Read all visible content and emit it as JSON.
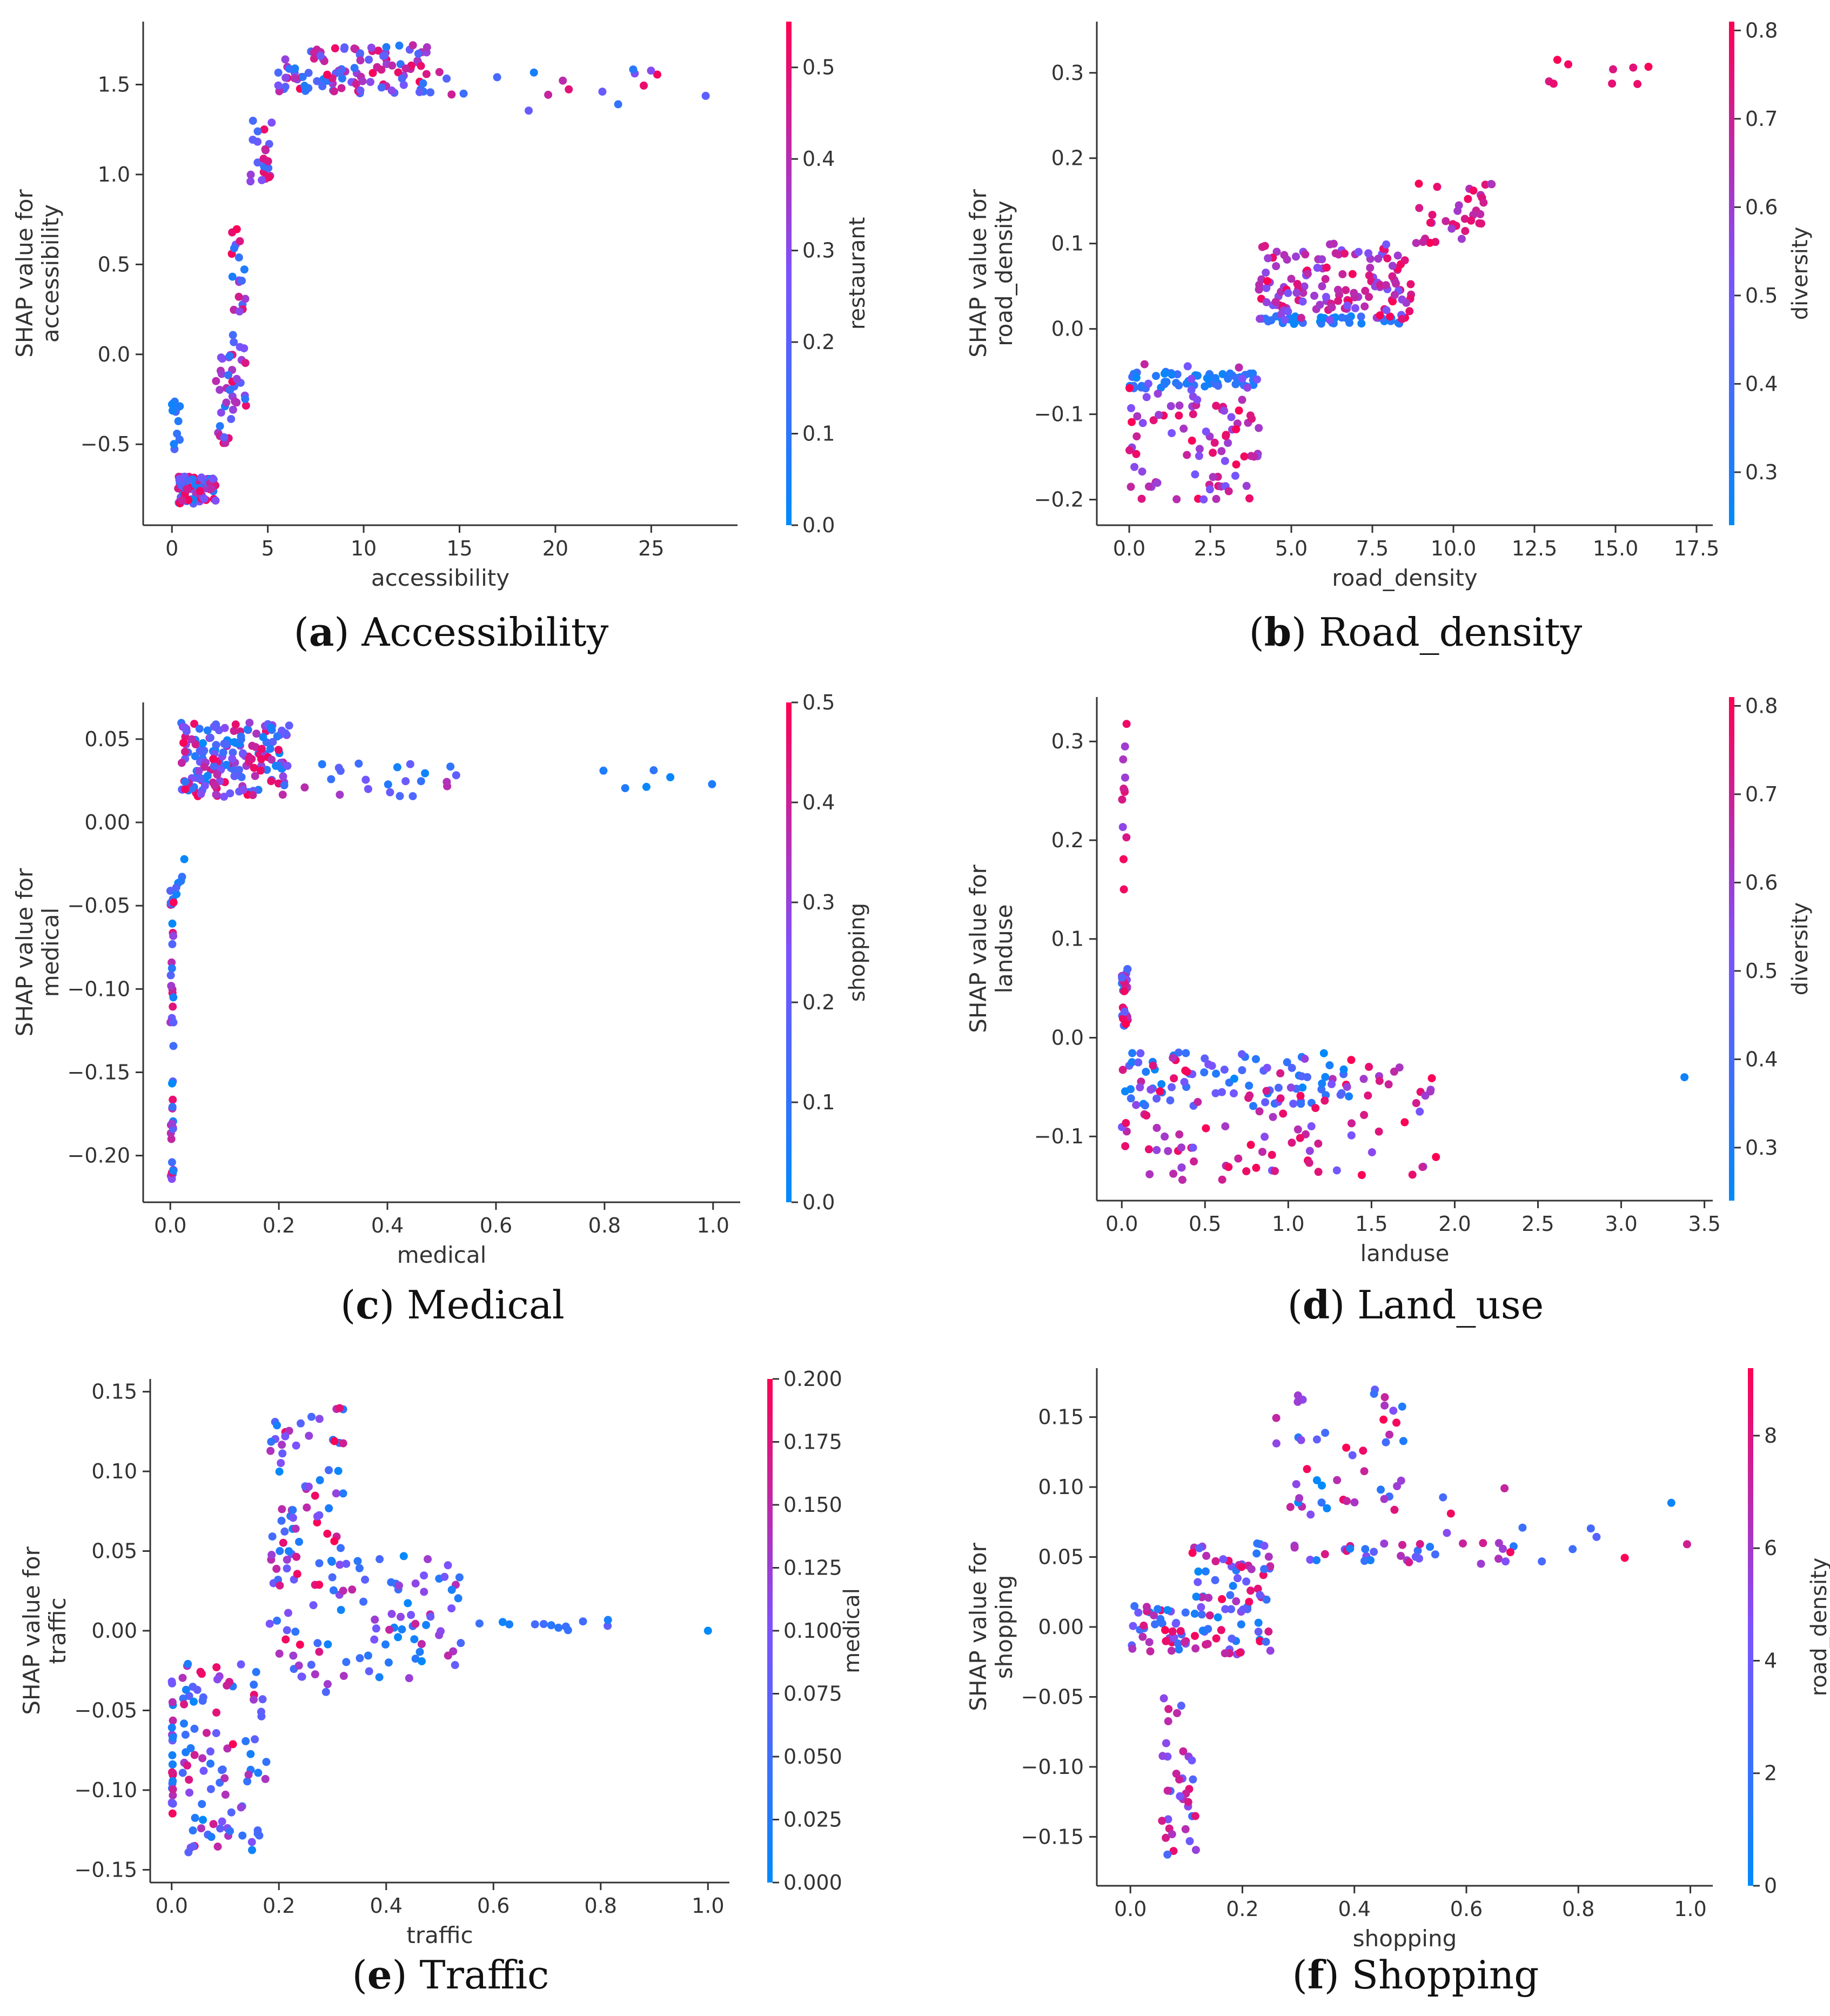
{
  "chart_data": [
    {
      "id": "a",
      "type": "scatter",
      "caption": {
        "letter": "a",
        "title": "Accessibility"
      },
      "xlabel": "accessibility",
      "ylabel": [
        "SHAP value for",
        "accessibility"
      ],
      "xlim": [
        -1.5,
        29.5
      ],
      "ylim": [
        -0.95,
        1.85
      ],
      "xticks": [
        0,
        5,
        10,
        15,
        20,
        25
      ],
      "xtick_labels": [
        "0",
        "5",
        "10",
        "15",
        "20",
        "25"
      ],
      "yticks": [
        -0.5,
        0.0,
        0.5,
        1.0,
        1.5
      ],
      "ytick_labels": [
        "−0.5",
        "0.0",
        "0.5",
        "1.0",
        "1.5"
      ],
      "colorbar": {
        "label": "restaurant",
        "min": 0.0,
        "max": 0.55,
        "ticks": [
          0.0,
          0.1,
          0.2,
          0.3,
          0.4,
          0.5
        ],
        "tick_labels": [
          "0.0",
          "0.1",
          "0.2",
          "0.3",
          "0.4",
          "0.5"
        ]
      },
      "segments": [
        {
          "x": [
            0.0,
            0.6
          ],
          "y": [
            -0.55,
            -0.2
          ],
          "c": [
            0.0,
            0.2
          ],
          "n": 14
        },
        {
          "x": [
            0.3,
            2.3
          ],
          "y": [
            -0.83,
            -0.68
          ],
          "c": [
            0.0,
            0.55
          ],
          "n": 80
        },
        {
          "x": [
            2.2,
            3.2
          ],
          "y": [
            -0.5,
            0.0
          ],
          "c": [
            0.05,
            0.55
          ],
          "n": 24
        },
        {
          "x": [
            3.0,
            3.9
          ],
          "y": [
            -0.3,
            0.7
          ],
          "c": [
            0.05,
            0.55
          ],
          "n": 36
        },
        {
          "x": [
            4.0,
            5.4
          ],
          "y": [
            0.95,
            1.3
          ],
          "c": [
            0.1,
            0.55
          ],
          "n": 22
        },
        {
          "x": [
            5.5,
            13.5
          ],
          "y": [
            1.45,
            1.72
          ],
          "c": [
            0.05,
            0.55
          ],
          "n": 110
        },
        {
          "x": [
            13.5,
            28.0
          ],
          "y": [
            1.35,
            1.6
          ],
          "c": [
            0.05,
            0.55
          ],
          "n": 18
        }
      ]
    },
    {
      "id": "b",
      "type": "scatter",
      "caption": {
        "letter": "b",
        "title": "Road_density"
      },
      "xlabel": "road_density",
      "ylabel": [
        "SHAP value for",
        "road_density"
      ],
      "xlim": [
        -1.0,
        18.0
      ],
      "ylim": [
        -0.23,
        0.36
      ],
      "xticks": [
        0.0,
        2.5,
        5.0,
        7.5,
        10.0,
        12.5,
        15.0,
        17.5
      ],
      "xtick_labels": [
        "0.0",
        "2.5",
        "5.0",
        "7.5",
        "10.0",
        "12.5",
        "15.0",
        "17.5"
      ],
      "yticks": [
        -0.2,
        -0.1,
        0.0,
        0.1,
        0.2,
        0.3
      ],
      "ytick_labels": [
        "−0.2",
        "−0.1",
        "0.0",
        "0.1",
        "0.2",
        "0.3"
      ],
      "colorbar": {
        "label": "diversity",
        "min": 0.24,
        "max": 0.81,
        "ticks": [
          0.3,
          0.4,
          0.5,
          0.6,
          0.7,
          0.8
        ],
        "tick_labels": [
          "0.3",
          "0.4",
          "0.5",
          "0.6",
          "0.7",
          "0.8"
        ]
      },
      "segments": [
        {
          "x": [
            0.0,
            4.0
          ],
          "y": [
            -0.07,
            -0.05
          ],
          "c": [
            0.24,
            0.4
          ],
          "n": 60
        },
        {
          "x": [
            0.0,
            4.0
          ],
          "y": [
            -0.2,
            -0.04
          ],
          "c": [
            0.5,
            0.81
          ],
          "n": 90
        },
        {
          "x": [
            4.0,
            8.5
          ],
          "y": [
            0.005,
            0.015
          ],
          "c": [
            0.24,
            0.4
          ],
          "n": 40
        },
        {
          "x": [
            4.0,
            8.8
          ],
          "y": [
            0.01,
            0.1
          ],
          "c": [
            0.5,
            0.81
          ],
          "n": 140
        },
        {
          "x": [
            8.8,
            11.3
          ],
          "y": [
            0.1,
            0.18
          ],
          "c": [
            0.6,
            0.81
          ],
          "n": 35
        },
        {
          "x": [
            12.3,
            16.8
          ],
          "y": [
            0.27,
            0.32
          ],
          "c": [
            0.7,
            0.81
          ],
          "n": 9
        }
      ]
    },
    {
      "id": "c",
      "type": "scatter",
      "caption": {
        "letter": "c",
        "title": "Medical"
      },
      "xlabel": "medical",
      "ylabel": [
        "SHAP value for",
        "medical"
      ],
      "xlim": [
        -0.05,
        1.05
      ],
      "ylim": [
        -0.228,
        0.072
      ],
      "xticks": [
        0.0,
        0.2,
        0.4,
        0.6,
        0.8,
        1.0
      ],
      "xtick_labels": [
        "0.0",
        "0.2",
        "0.4",
        "0.6",
        "0.8",
        "1.0"
      ],
      "yticks": [
        -0.2,
        -0.15,
        -0.1,
        -0.05,
        0.0,
        0.05
      ],
      "ytick_labels": [
        "−0.20",
        "−0.15",
        "−0.10",
        "−0.05",
        "0.00",
        "0.05"
      ],
      "colorbar": {
        "label": "shopping",
        "min": 0.0,
        "max": 0.5,
        "ticks": [
          0.0,
          0.1,
          0.2,
          0.3,
          0.4,
          0.5
        ],
        "tick_labels": [
          "0.0",
          "0.1",
          "0.2",
          "0.3",
          "0.4",
          "0.5"
        ]
      },
      "segments": [
        {
          "x": [
            0.0,
            0.006
          ],
          "y": [
            -0.215,
            -0.04
          ],
          "c": [
            0.0,
            0.5
          ],
          "n": 45
        },
        {
          "x": [
            0.01,
            0.03
          ],
          "y": [
            -0.06,
            -0.02
          ],
          "c": [
            0.0,
            0.2
          ],
          "n": 6
        },
        {
          "x": [
            0.02,
            0.22
          ],
          "y": [
            0.015,
            0.06
          ],
          "c": [
            0.0,
            0.5
          ],
          "n": 180
        },
        {
          "x": [
            0.22,
            0.53
          ],
          "y": [
            0.015,
            0.036
          ],
          "c": [
            0.0,
            0.4
          ],
          "n": 22
        },
        {
          "x": [
            0.66,
            1.0
          ],
          "y": [
            0.02,
            0.033
          ],
          "c": [
            0.0,
            0.1
          ],
          "n": 6
        }
      ]
    },
    {
      "id": "d",
      "type": "scatter",
      "caption": {
        "letter": "d",
        "title": "Land_use"
      },
      "xlabel": "landuse",
      "ylabel": [
        "SHAP value for",
        "landuse"
      ],
      "xlim": [
        -0.15,
        3.55
      ],
      "ylim": [
        -0.165,
        0.345
      ],
      "xticks": [
        0.0,
        0.5,
        1.0,
        1.5,
        2.0,
        2.5,
        3.0,
        3.5
      ],
      "xtick_labels": [
        "0.0",
        "0.5",
        "1.0",
        "1.5",
        "2.0",
        "2.5",
        "3.0",
        "3.5"
      ],
      "yticks": [
        -0.1,
        0.0,
        0.1,
        0.2,
        0.3
      ],
      "ytick_labels": [
        "−0.1",
        "0.0",
        "0.1",
        "0.2",
        "0.3"
      ],
      "colorbar": {
        "label": "diversity",
        "min": 0.24,
        "max": 0.81,
        "ticks": [
          0.3,
          0.4,
          0.5,
          0.6,
          0.7,
          0.8
        ],
        "tick_labels": [
          "0.3",
          "0.4",
          "0.5",
          "0.6",
          "0.7",
          "0.8"
        ]
      },
      "segments": [
        {
          "x": [
            0.0,
            0.03
          ],
          "y": [
            0.12,
            0.32
          ],
          "c": [
            0.55,
            0.81
          ],
          "n": 12
        },
        {
          "x": [
            0.0,
            0.04
          ],
          "y": [
            0.01,
            0.07
          ],
          "c": [
            0.24,
            0.81
          ],
          "n": 30
        },
        {
          "x": [
            0.0,
            1.4
          ],
          "y": [
            -0.07,
            -0.015
          ],
          "c": [
            0.24,
            0.5
          ],
          "n": 70
        },
        {
          "x": [
            0.0,
            1.9
          ],
          "y": [
            -0.145,
            -0.02
          ],
          "c": [
            0.5,
            0.81
          ],
          "n": 110
        },
        {
          "x": [
            3.38,
            3.38
          ],
          "y": [
            -0.04,
            -0.04
          ],
          "c": [
            0.28,
            0.28
          ],
          "n": 1
        }
      ]
    },
    {
      "id": "e",
      "type": "scatter",
      "caption": {
        "letter": "e",
        "title": "Traffic"
      },
      "xlabel": "traffic",
      "ylabel": [
        "SHAP value for",
        "traffic"
      ],
      "xlim": [
        -0.04,
        1.04
      ],
      "ylim": [
        -0.158,
        0.158
      ],
      "xticks": [
        0.0,
        0.2,
        0.4,
        0.6,
        0.8,
        1.0
      ],
      "xtick_labels": [
        "0.0",
        "0.2",
        "0.4",
        "0.6",
        "0.8",
        "1.0"
      ],
      "yticks": [
        -0.15,
        -0.1,
        -0.05,
        0.0,
        0.05,
        0.1,
        0.15
      ],
      "ytick_labels": [
        "−0.15",
        "−0.10",
        "−0.05",
        "0.00",
        "0.05",
        "0.10",
        "0.15"
      ],
      "colorbar": {
        "label": "medical",
        "min": 0.0,
        "max": 0.2,
        "ticks": [
          0.0,
          0.025,
          0.05,
          0.075,
          0.1,
          0.125,
          0.15,
          0.175,
          0.2
        ],
        "tick_labels": [
          "0.000",
          "0.025",
          "0.050",
          "0.075",
          "0.100",
          "0.125",
          "0.150",
          "0.175",
          "0.200"
        ]
      },
      "segments": [
        {
          "x": [
            0.0,
            0.003
          ],
          "y": [
            -0.12,
            -0.03
          ],
          "c": [
            0.0,
            0.2
          ],
          "n": 25
        },
        {
          "x": [
            0.02,
            0.18
          ],
          "y": [
            -0.14,
            -0.02
          ],
          "c": [
            0.0,
            0.2
          ],
          "n": 90
        },
        {
          "x": [
            0.18,
            0.32
          ],
          "y": [
            -0.04,
            0.14
          ],
          "c": [
            0.0,
            0.2
          ],
          "n": 100
        },
        {
          "x": [
            0.32,
            0.56
          ],
          "y": [
            -0.03,
            0.05
          ],
          "c": [
            0.0,
            0.16
          ],
          "n": 60
        },
        {
          "x": [
            0.56,
            0.82
          ],
          "y": [
            0.0,
            0.007
          ],
          "c": [
            0.0,
            0.08
          ],
          "n": 12
        },
        {
          "x": [
            1.0,
            1.0
          ],
          "y": [
            0.0,
            0.0
          ],
          "c": [
            0.0,
            0.0
          ],
          "n": 1
        }
      ]
    },
    {
      "id": "f",
      "type": "scatter",
      "caption": {
        "letter": "f",
        "title": "Shopping"
      },
      "xlabel": "shopping",
      "ylabel": [
        "SHAP value for",
        "shopping"
      ],
      "xlim": [
        -0.06,
        1.04
      ],
      "ylim": [
        -0.185,
        0.185
      ],
      "xticks": [
        0.0,
        0.2,
        0.4,
        0.6,
        0.8,
        1.0
      ],
      "xtick_labels": [
        "0.0",
        "0.2",
        "0.4",
        "0.6",
        "0.8",
        "1.0"
      ],
      "yticks": [
        -0.15,
        -0.1,
        -0.05,
        0.0,
        0.05,
        0.1,
        0.15
      ],
      "ytick_labels": [
        "−0.15",
        "−0.10",
        "−0.05",
        "0.00",
        "0.05",
        "0.10",
        "0.15"
      ],
      "colorbar": {
        "label": "road_density",
        "min": 0.0,
        "max": 9.2,
        "ticks": [
          0,
          2,
          4,
          6,
          8
        ],
        "tick_labels": [
          "0",
          "2",
          "4",
          "6",
          "8"
        ]
      },
      "segments": [
        {
          "x": [
            0.0,
            0.1
          ],
          "y": [
            -0.02,
            0.015
          ],
          "c": [
            0.0,
            9.2
          ],
          "n": 40
        },
        {
          "x": [
            0.05,
            0.12
          ],
          "y": [
            -0.17,
            -0.05
          ],
          "c": [
            2.0,
            9.2
          ],
          "n": 35
        },
        {
          "x": [
            0.11,
            0.25
          ],
          "y": [
            -0.02,
            0.06
          ],
          "c": [
            0.0,
            9.2
          ],
          "n": 80
        },
        {
          "x": [
            0.25,
            0.5
          ],
          "y": [
            0.08,
            0.175
          ],
          "c": [
            0.0,
            9.2
          ],
          "n": 45
        },
        {
          "x": [
            0.25,
            0.75
          ],
          "y": [
            0.045,
            0.06
          ],
          "c": [
            0.0,
            9.2
          ],
          "n": 35
        },
        {
          "x": [
            0.5,
            1.0
          ],
          "y": [
            0.045,
            0.1
          ],
          "c": [
            0.0,
            9.2
          ],
          "n": 12
        }
      ]
    }
  ]
}
